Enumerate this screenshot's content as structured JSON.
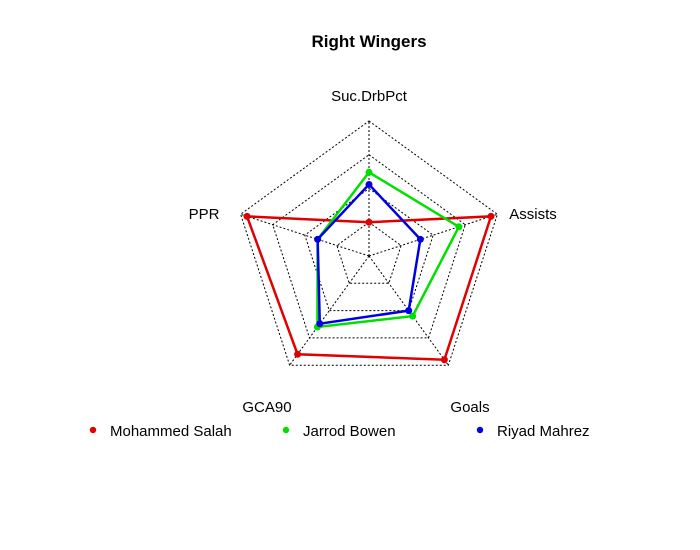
{
  "chart_data": {
    "type": "radar",
    "title": "Right Wingers",
    "axes": [
      "Suc.DrbPct",
      "Assists",
      "Goals",
      "GCA90",
      "PPR"
    ],
    "rlim": [
      0,
      1
    ],
    "grid_levels": 4,
    "legend_position": "bottom",
    "series": [
      {
        "name": "Mohammed Salah",
        "color": "#e00000",
        "values": [
          0.25,
          0.95,
          0.95,
          0.9,
          0.95
        ]
      },
      {
        "name": "Jarrod Bowen",
        "color": "#00e000",
        "values": [
          0.62,
          0.7,
          0.55,
          0.65,
          0.4
        ]
      },
      {
        "name": "Riyad Mahrez",
        "color": "#0000e0",
        "values": [
          0.53,
          0.4,
          0.5,
          0.62,
          0.4
        ]
      }
    ]
  }
}
